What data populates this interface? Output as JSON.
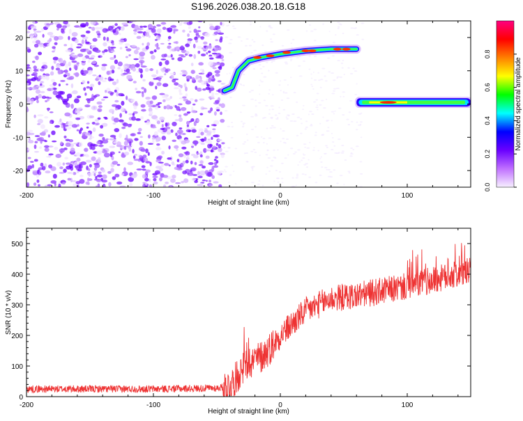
{
  "title": "S196.2026.038.20.18.G18",
  "chart_data": [
    {
      "type": "heatmap",
      "name": "spectrogram",
      "xlabel": "Height of straight line (km)",
      "ylabel": "Frequency (Hz)",
      "xlim": [
        -200,
        150
      ],
      "ylim": [
        -25,
        25
      ],
      "xticks": [
        -200,
        -100,
        0,
        100
      ],
      "yticks": [
        20,
        10,
        0,
        -10,
        -20
      ],
      "colorbar": {
        "label": "Normalized spectral amplitude",
        "range": [
          0.0,
          1.0
        ],
        "ticks": [
          0.0,
          0.2,
          0.4,
          0.6,
          0.8
        ],
        "colors": [
          "#f7f0ff",
          "#c070ff",
          "#6a00ff",
          "#0000ff",
          "#00ffff",
          "#00ff00",
          "#ffff00",
          "#ff8000",
          "#ff0000",
          "#ff0080"
        ]
      },
      "features": [
        {
          "label": "noise region",
          "x_range": [
            -200,
            -45
          ],
          "y_range": [
            -25,
            25
          ],
          "amplitude": 0.15
        },
        {
          "label": "rising trace",
          "points": [
            [
              -44,
              4
            ],
            [
              -38,
              5
            ],
            [
              -33,
              10
            ],
            [
              -25,
              13
            ],
            [
              -15,
              14
            ],
            [
              0,
              15
            ],
            [
              20,
              16
            ],
            [
              40,
              16.5
            ],
            [
              60,
              16.5
            ]
          ],
          "peak_amplitude": 0.9
        },
        {
          "label": "flat trace",
          "x_range": [
            60,
            150
          ],
          "frequency": 0.5,
          "peak_amplitude": 0.95
        }
      ]
    },
    {
      "type": "line",
      "name": "snr",
      "xlabel": "Height of straight line (km)",
      "ylabel": "SNR (10 * v/v)",
      "xlim": [
        -200,
        150
      ],
      "ylim": [
        0,
        550
      ],
      "xticks": [
        -200,
        -100,
        0,
        100
      ],
      "yticks": [
        0,
        100,
        200,
        300,
        400,
        500
      ],
      "color": "#ee3333",
      "series": [
        {
          "name": "SNR",
          "x": [
            -200,
            -150,
            -100,
            -50,
            -40,
            -35,
            -30,
            -25,
            -20,
            -15,
            -10,
            -5,
            0,
            10,
            20,
            30,
            40,
            60,
            80,
            100,
            120,
            140,
            150
          ],
          "y": [
            25,
            25,
            25,
            28,
            35,
            60,
            90,
            110,
            120,
            130,
            150,
            175,
            200,
            240,
            280,
            300,
            320,
            330,
            345,
            360,
            380,
            400,
            410
          ]
        }
      ]
    }
  ]
}
